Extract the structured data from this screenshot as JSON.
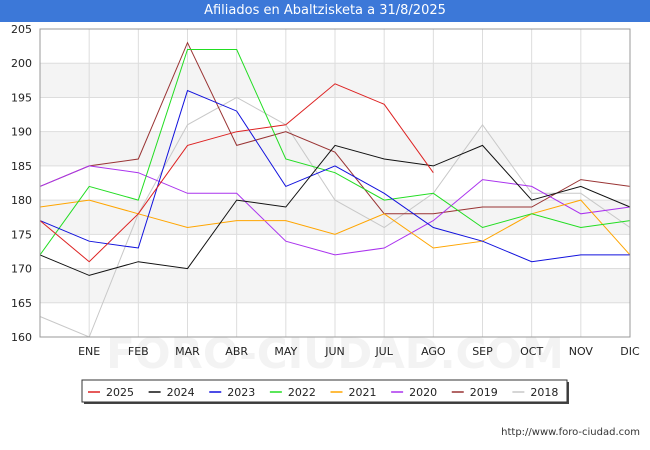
{
  "title": "Afiliados en Abaltzisketa a 31/8/2025",
  "source": "http://www.foro-ciudad.com",
  "watermark": "FORO-CIUDAD.COM",
  "chart_data": {
    "type": "line",
    "categories": [
      "",
      "ENE",
      "FEB",
      "MAR",
      "ABR",
      "MAY",
      "JUN",
      "JUL",
      "AGO",
      "SEP",
      "OCT",
      "NOV",
      "DIC"
    ],
    "ylim": [
      160,
      205
    ],
    "yticks": [
      160,
      165,
      170,
      175,
      180,
      185,
      190,
      195,
      200,
      205
    ],
    "grid": true,
    "legend_position": "bottom",
    "series": [
      {
        "name": "2025",
        "color": "#dd2222",
        "values": [
          177,
          171,
          178,
          188,
          190,
          191,
          197,
          194,
          184,
          null,
          null,
          null,
          null
        ]
      },
      {
        "name": "2024",
        "color": "#111111",
        "values": [
          172,
          169,
          171,
          170,
          180,
          179,
          188,
          186,
          185,
          188,
          180,
          182,
          179
        ]
      },
      {
        "name": "2023",
        "color": "#1111dd",
        "values": [
          177,
          174,
          173,
          196,
          193,
          182,
          185,
          181,
          176,
          174,
          171,
          172,
          172
        ]
      },
      {
        "name": "2022",
        "color": "#22dd22",
        "values": [
          172,
          182,
          180,
          202,
          202,
          186,
          184,
          180,
          181,
          176,
          178,
          176,
          177
        ]
      },
      {
        "name": "2021",
        "color": "#ffa500",
        "values": [
          179,
          180,
          178,
          176,
          177,
          177,
          175,
          178,
          173,
          174,
          178,
          180,
          172
        ]
      },
      {
        "name": "2020",
        "color": "#aa33ee",
        "values": [
          182,
          185,
          184,
          181,
          181,
          174,
          172,
          173,
          177,
          183,
          182,
          178,
          179
        ]
      },
      {
        "name": "2019",
        "color": "#993333",
        "values": [
          182,
          185,
          186,
          203,
          188,
          190,
          187,
          178,
          178,
          179,
          179,
          183,
          182
        ]
      },
      {
        "name": "2018",
        "color": "#c8c8c8",
        "values": [
          163,
          160,
          178,
          191,
          195,
          191,
          180,
          176,
          181,
          191,
          181,
          181,
          176
        ]
      }
    ]
  }
}
